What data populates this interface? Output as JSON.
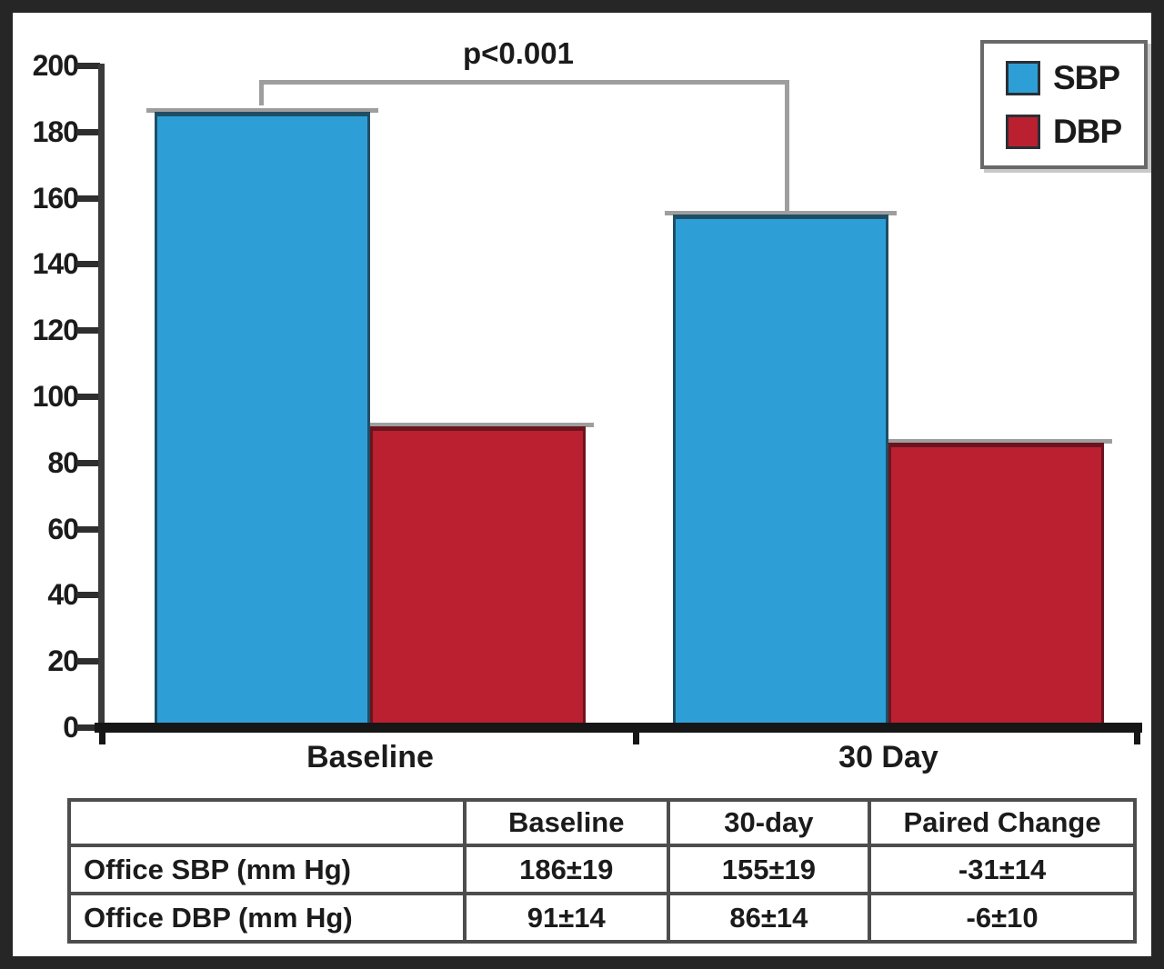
{
  "chart_data": {
    "type": "bar",
    "title": "",
    "xlabel": "",
    "ylabel": "",
    "categories": [
      "Baseline",
      "30 Day"
    ],
    "series": [
      {
        "name": "SBP",
        "color": "#2E9FD6",
        "edge_color": "#1E4E66",
        "values": [
          186,
          155
        ]
      },
      {
        "name": "DBP",
        "color": "#BB2030",
        "edge_color": "#6B141F",
        "values": [
          91,
          86
        ]
      }
    ],
    "ylim": [
      0,
      200
    ],
    "yticks": [
      0,
      20,
      40,
      60,
      80,
      100,
      120,
      140,
      160,
      180,
      200
    ],
    "grid": false,
    "legend_position": "top-right",
    "annotation": {
      "text": "p<0.001"
    }
  },
  "legend": {
    "items": [
      {
        "label": "SBP",
        "color": "#2E9FD6"
      },
      {
        "label": "DBP",
        "color": "#BB2030"
      }
    ]
  },
  "table": {
    "headers": [
      "",
      "Baseline",
      "30-day",
      "Paired Change"
    ],
    "rows": [
      {
        "label": "Office SBP (mm Hg)",
        "values": [
          "186±19",
          "155±19",
          "-31±14"
        ]
      },
      {
        "label": "Office DBP (mm Hg)",
        "values": [
          "91±14",
          "86±14",
          "-6±10"
        ]
      }
    ]
  },
  "colors": {
    "frame": "#262626",
    "background": "#ffffff",
    "axis": "#3a3a3a",
    "x_axis": "#161616",
    "bracket": "#9e9e9e",
    "bar_cap": "#9e9e9e",
    "text": "#1b1b1b"
  }
}
